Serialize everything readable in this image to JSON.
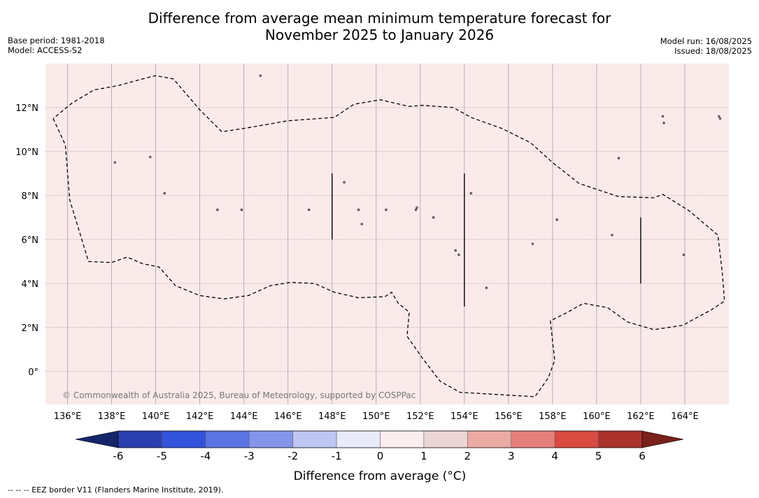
{
  "title_line1": "Difference from average mean minimum temperature forecast for",
  "title_line2": "November 2025 to January 2026",
  "base_period": "Base period: 1981-2018",
  "model": "Model: ACCESS-S2",
  "model_run": "Model run: 16/08/2025",
  "issued": "Issued: 18/08/2025",
  "copyright": "© Commonwealth of Australia 2025, Bureau of Meteorology, supported by COSPPac",
  "footnote": "--  --  -- EEZ border V11 (Flanders Marine Institute, 2019).",
  "map": {
    "lon_range": [
      135.0,
      166.0
    ],
    "lat_range": [
      -1.5,
      14.0
    ],
    "fill_color": "#fbeaea",
    "lon_ticks": [
      {
        "value": 136,
        "label": "136°E"
      },
      {
        "value": 138,
        "label": "138°E"
      },
      {
        "value": 140,
        "label": "140°E"
      },
      {
        "value": 142,
        "label": "142°E"
      },
      {
        "value": 144,
        "label": "144°E"
      },
      {
        "value": 146,
        "label": "146°E"
      },
      {
        "value": 148,
        "label": "148°E"
      },
      {
        "value": 150,
        "label": "150°E"
      },
      {
        "value": 152,
        "label": "152°E"
      },
      {
        "value": 154,
        "label": "154°E"
      },
      {
        "value": 156,
        "label": "156°E"
      },
      {
        "value": 158,
        "label": "158°E"
      },
      {
        "value": 160,
        "label": "160°E"
      },
      {
        "value": 162,
        "label": "162°E"
      },
      {
        "value": 164,
        "label": "164°E"
      }
    ],
    "lat_ticks": [
      {
        "value": 0,
        "label": "0°"
      },
      {
        "value": 2,
        "label": "2°N"
      },
      {
        "value": 4,
        "label": "4°N"
      },
      {
        "value": 6,
        "label": "6°N"
      },
      {
        "value": 8,
        "label": "8°N"
      },
      {
        "value": 10,
        "label": "10°N"
      },
      {
        "value": 12,
        "label": "12°N"
      }
    ],
    "eez_border": [
      [
        135.35,
        11.5
      ],
      [
        135.9,
        10.3
      ],
      [
        136.1,
        7.8
      ],
      [
        136.95,
        5.0
      ],
      [
        138.0,
        4.95
      ],
      [
        138.7,
        5.2
      ],
      [
        139.4,
        4.9
      ],
      [
        140.15,
        4.75
      ],
      [
        140.9,
        3.9
      ],
      [
        142.0,
        3.45
      ],
      [
        143.1,
        3.3
      ],
      [
        144.2,
        3.45
      ],
      [
        145.2,
        3.9
      ],
      [
        146.1,
        4.05
      ],
      [
        147.2,
        4.0
      ],
      [
        148.1,
        3.6
      ],
      [
        149.2,
        3.35
      ],
      [
        150.4,
        3.4
      ],
      [
        150.7,
        3.6
      ],
      [
        151.0,
        3.1
      ],
      [
        151.5,
        2.7
      ],
      [
        151.4,
        1.6
      ],
      [
        152.1,
        0.6
      ],
      [
        152.9,
        -0.45
      ],
      [
        153.8,
        -0.95
      ],
      [
        155.5,
        -1.05
      ],
      [
        157.2,
        -1.15
      ],
      [
        157.8,
        -0.3
      ],
      [
        158.1,
        0.5
      ],
      [
        157.9,
        2.3
      ],
      [
        158.7,
        2.7
      ],
      [
        159.4,
        3.1
      ],
      [
        160.5,
        2.9
      ],
      [
        161.4,
        2.25
      ],
      [
        162.6,
        1.9
      ],
      [
        163.9,
        2.1
      ],
      [
        165.2,
        2.8
      ],
      [
        165.8,
        3.2
      ],
      [
        165.7,
        4.5
      ],
      [
        165.5,
        6.2
      ],
      [
        164.2,
        7.3
      ],
      [
        163.0,
        8.05
      ],
      [
        162.6,
        7.9
      ],
      [
        161.0,
        7.95
      ],
      [
        159.2,
        8.55
      ],
      [
        158.0,
        9.5
      ],
      [
        157.0,
        10.4
      ],
      [
        155.7,
        11.05
      ],
      [
        154.3,
        11.55
      ],
      [
        153.5,
        12.0
      ],
      [
        152.1,
        12.1
      ],
      [
        151.5,
        12.05
      ],
      [
        150.2,
        12.35
      ],
      [
        149.0,
        12.15
      ],
      [
        148.1,
        11.55
      ],
      [
        146.0,
        11.4
      ],
      [
        144.0,
        11.05
      ],
      [
        143.0,
        10.9
      ],
      [
        142.0,
        11.9
      ],
      [
        140.8,
        13.3
      ],
      [
        140.0,
        13.45
      ],
      [
        139.4,
        13.3
      ],
      [
        138.3,
        13.0
      ],
      [
        137.2,
        12.8
      ],
      [
        136.2,
        12.2
      ],
      [
        135.35,
        11.5
      ]
    ],
    "boundary_lines": [
      {
        "lon": 148,
        "lat_from": 6.0,
        "lat_to": 9.0
      },
      {
        "lon": 154,
        "lat_from": 2.95,
        "lat_to": 9.0
      },
      {
        "lon": 162,
        "lat_from": 4.0,
        "lat_to": 7.0
      }
    ],
    "islands": [
      [
        144.75,
        13.45
      ],
      [
        138.15,
        9.5
      ],
      [
        139.75,
        9.75
      ],
      [
        140.4,
        8.1
      ],
      [
        143.9,
        7.35
      ],
      [
        146.95,
        7.35
      ],
      [
        148.55,
        8.6
      ],
      [
        149.2,
        7.35
      ],
      [
        149.35,
        6.7
      ],
      [
        150.45,
        7.35
      ],
      [
        151.8,
        7.35
      ],
      [
        151.85,
        7.45
      ],
      [
        152.6,
        7.0
      ],
      [
        153.6,
        5.5
      ],
      [
        153.75,
        5.3
      ],
      [
        154.3,
        8.1
      ],
      [
        155.0,
        3.8
      ],
      [
        157.1,
        5.8
      ],
      [
        158.2,
        6.9
      ],
      [
        160.7,
        6.2
      ],
      [
        161.0,
        9.7
      ],
      [
        163.0,
        11.6
      ],
      [
        163.05,
        11.3
      ],
      [
        163.95,
        5.3
      ],
      [
        165.55,
        11.6
      ],
      [
        165.6,
        11.5
      ],
      [
        142.8,
        7.35
      ]
    ]
  },
  "colorbar": {
    "label": "Difference from average (°C)",
    "tick_labels": [
      "-6",
      "-5",
      "-4",
      "-3",
      "-2",
      "-1",
      "0",
      "1",
      "2",
      "3",
      "4",
      "5",
      "6"
    ],
    "under_color": "#15256a",
    "over_color": "#7a1f1a",
    "colors": [
      "#2a3fae",
      "#3352dc",
      "#5a74e3",
      "#8596ea",
      "#bec6f3",
      "#e8ebfb",
      "#fdeeee",
      "#ecd5d5",
      "#ecaba4",
      "#e5807a",
      "#d94a40",
      "#a9302b"
    ]
  }
}
